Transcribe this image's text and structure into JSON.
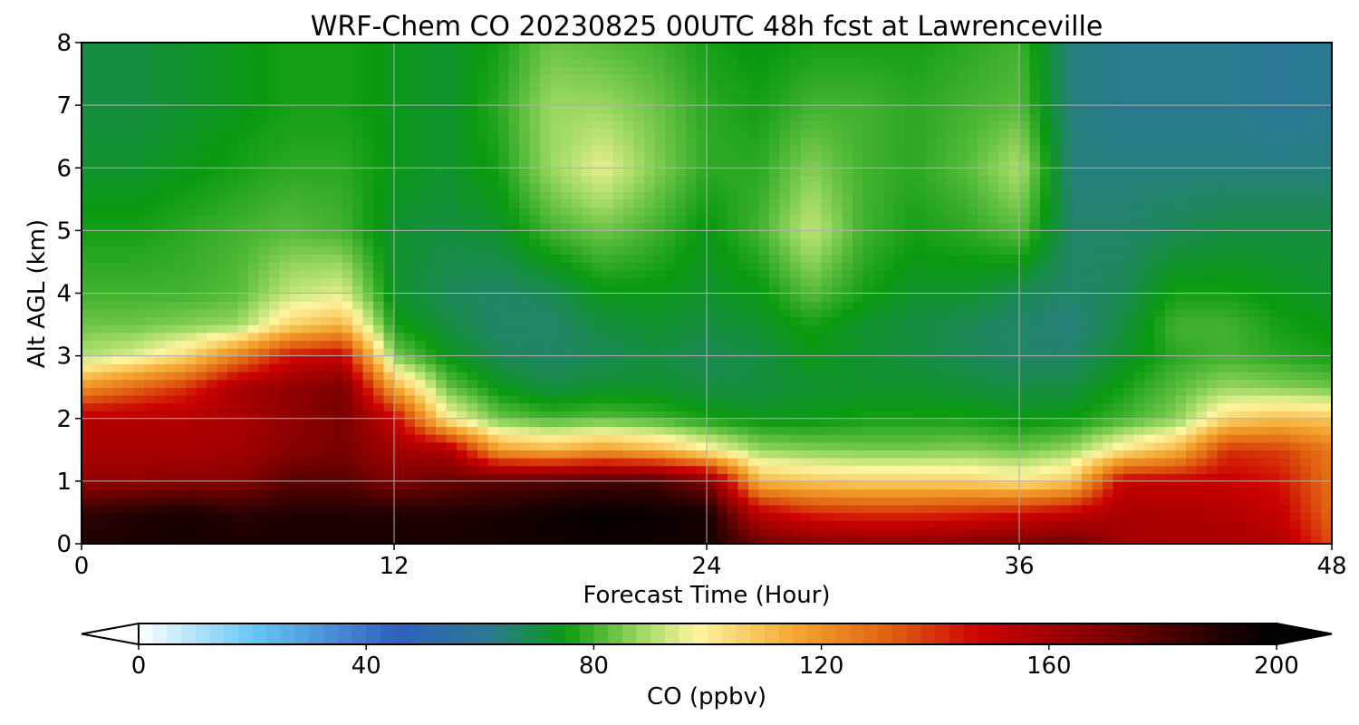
{
  "chart_data": {
    "type": "heatmap",
    "title": "WRF-Chem CO  20230825 00UTC 48h fcst at Lawrenceville",
    "xlabel": "Forecast Time (Hour)",
    "ylabel": "Alt AGL (km)",
    "xlim": [
      0,
      48
    ],
    "ylim": [
      0,
      8
    ],
    "x_ticks": [
      0,
      12,
      24,
      36,
      48
    ],
    "y_ticks": [
      0,
      1,
      2,
      3,
      4,
      5,
      6,
      7,
      8
    ],
    "grid": true,
    "colorbar": {
      "label": "CO  (ppbv)",
      "min": 0,
      "max": 200,
      "ticks": [
        0,
        40,
        80,
        120,
        160,
        200
      ],
      "extend": "both",
      "placement": "bottom",
      "color_stops": [
        {
          "value": 0,
          "color": "#ffffff"
        },
        {
          "value": 20,
          "color": "#66c8f5"
        },
        {
          "value": 45,
          "color": "#3060c0"
        },
        {
          "value": 62,
          "color": "#2a7a90"
        },
        {
          "value": 75,
          "color": "#0a9a10"
        },
        {
          "value": 88,
          "color": "#9ad860"
        },
        {
          "value": 98,
          "color": "#fff6a0"
        },
        {
          "value": 115,
          "color": "#f5a830"
        },
        {
          "value": 132,
          "color": "#e06010"
        },
        {
          "value": 148,
          "color": "#cc0000"
        },
        {
          "value": 170,
          "color": "#800000"
        },
        {
          "value": 190,
          "color": "#200000"
        },
        {
          "value": 200,
          "color": "#000000"
        }
      ]
    },
    "field": {
      "x_hours": [
        0,
        2,
        4,
        6,
        8,
        10,
        12,
        14,
        16,
        18,
        20,
        22,
        24,
        26,
        28,
        30,
        32,
        34,
        36,
        38,
        40,
        42,
        44,
        46,
        48
      ],
      "y_km": [
        0,
        0.5,
        1,
        1.5,
        2,
        2.5,
        3,
        3.5,
        4,
        5,
        6,
        7,
        8
      ],
      "values_ppbv": [
        [
          190,
          192,
          193,
          192,
          193,
          193,
          193,
          193,
          194,
          195,
          196,
          195,
          194,
          175,
          168,
          166,
          166,
          168,
          172,
          175,
          160,
          158,
          158,
          156,
          135
        ],
        [
          186,
          190,
          192,
          188,
          190,
          190,
          190,
          190,
          192,
          195,
          198,
          196,
          193,
          152,
          142,
          140,
          140,
          142,
          145,
          150,
          158,
          156,
          155,
          150,
          130
        ],
        [
          165,
          165,
          168,
          168,
          178,
          178,
          170,
          175,
          178,
          180,
          182,
          182,
          170,
          112,
          108,
          106,
          106,
          106,
          102,
          108,
          150,
          150,
          150,
          145,
          128
        ],
        [
          158,
          158,
          158,
          160,
          168,
          172,
          160,
          158,
          118,
          112,
          118,
          112,
          100,
          88,
          86,
          85,
          85,
          86,
          84,
          88,
          102,
          112,
          140,
          138,
          126
        ],
        [
          155,
          155,
          156,
          158,
          165,
          172,
          150,
          100,
          84,
          80,
          82,
          80,
          76,
          74,
          74,
          76,
          76,
          76,
          74,
          75,
          80,
          86,
          105,
          110,
          108
        ],
        [
          120,
          130,
          140,
          158,
          165,
          172,
          115,
          84,
          74,
          70,
          72,
          72,
          70,
          70,
          72,
          72,
          72,
          71,
          70,
          70,
          76,
          82,
          88,
          86,
          84
        ],
        [
          90,
          95,
          105,
          125,
          145,
          150,
          85,
          74,
          68,
          66,
          68,
          70,
          68,
          70,
          74,
          72,
          70,
          68,
          66,
          66,
          72,
          78,
          80,
          78,
          76
        ],
        [
          84,
          84,
          86,
          88,
          105,
          112,
          76,
          70,
          66,
          66,
          70,
          72,
          70,
          72,
          76,
          72,
          70,
          68,
          66,
          64,
          70,
          80,
          80,
          76,
          74
        ],
        [
          80,
          80,
          80,
          82,
          92,
          95,
          72,
          68,
          66,
          68,
          74,
          74,
          72,
          74,
          82,
          76,
          72,
          72,
          68,
          66,
          68,
          76,
          76,
          74,
          72
        ],
        [
          76,
          76,
          78,
          80,
          82,
          80,
          72,
          70,
          72,
          80,
          84,
          80,
          74,
          80,
          92,
          80,
          76,
          78,
          82,
          66,
          66,
          68,
          70,
          70,
          70
        ],
        [
          72,
          72,
          74,
          76,
          78,
          78,
          74,
          72,
          76,
          88,
          96,
          86,
          78,
          78,
          86,
          80,
          78,
          82,
          90,
          64,
          64,
          64,
          64,
          64,
          64
        ],
        [
          70,
          70,
          72,
          74,
          76,
          76,
          74,
          72,
          78,
          88,
          88,
          84,
          78,
          76,
          80,
          80,
          78,
          80,
          82,
          64,
          62,
          62,
          62,
          60,
          62
        ],
        [
          70,
          70,
          72,
          74,
          76,
          76,
          74,
          72,
          76,
          84,
          82,
          80,
          76,
          74,
          76,
          76,
          76,
          78,
          80,
          64,
          62,
          62,
          62,
          60,
          62
        ]
      ]
    }
  }
}
